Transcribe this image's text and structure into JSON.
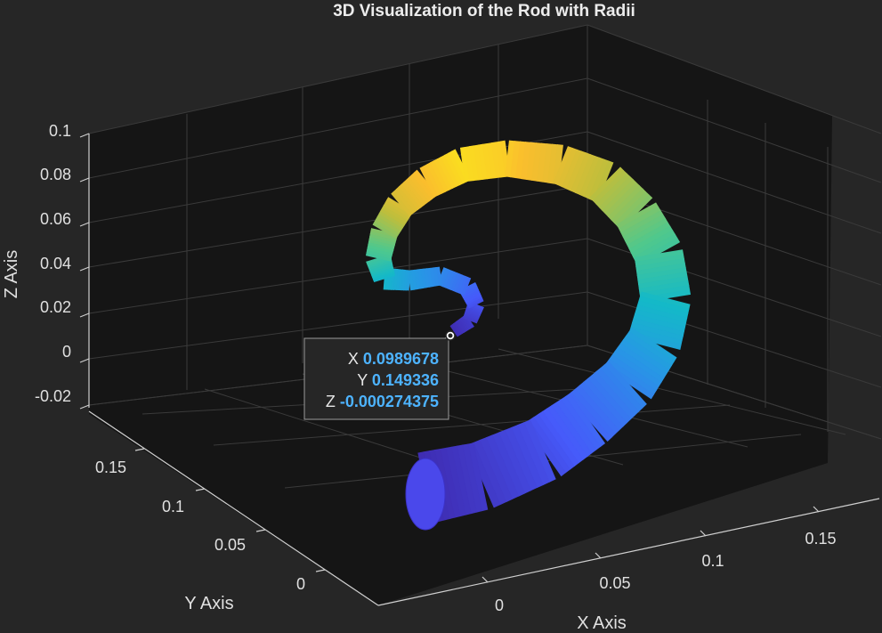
{
  "chart_data": {
    "type": "3d-tube",
    "title": "3D Visualization of the Rod with Radii",
    "xlabel": "X Axis",
    "ylabel": "Y Axis",
    "zlabel": "Z Axis",
    "x_ticks": [
      "0",
      "0.05",
      "0.1",
      "0.15"
    ],
    "y_ticks": [
      "0",
      "0.05",
      "0.1",
      "0.15"
    ],
    "z_ticks": [
      "0.1",
      "0.08",
      "0.06",
      "0.04",
      "0.02",
      "0",
      "-0.02"
    ],
    "xlim": [
      -0.03,
      0.19
    ],
    "ylim": [
      -0.02,
      0.18
    ],
    "zlim": [
      -0.025,
      0.1
    ],
    "grid": true,
    "colormap": "parula",
    "background": "#262626",
    "axes_color": "#151515",
    "datatip": {
      "x_label": "X",
      "x_value": "0.0989678",
      "y_label": "Y",
      "y_value": "0.149336",
      "z_label": "Z",
      "z_value": "-0.000274375",
      "value_color": "#4db3ff"
    }
  }
}
